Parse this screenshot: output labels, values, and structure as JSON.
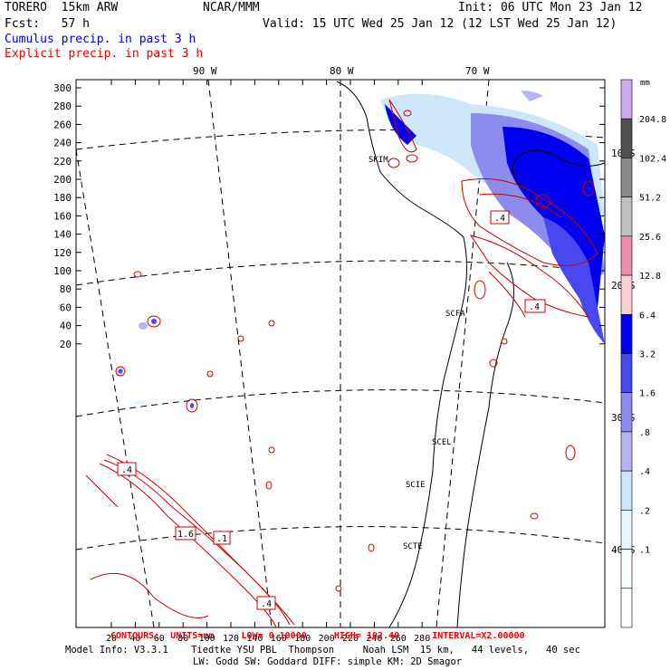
{
  "header": {
    "model": "TORERO  15km ARW",
    "org": "NCAR/MMM",
    "init": "Init: 06 UTC Mon 23 Jan 12",
    "fcst": "Fcst:   57 h",
    "valid": "Valid: 15 UTC Wed 25 Jan 12 (12 LST Wed 25 Jan 12)",
    "cumulus": "Cumulus precip. in past 3 h",
    "explicit": "Explicit precip. in past 3 h"
  },
  "colors": {
    "cumulus_text": "#0000cc",
    "explicit_text": "#ee0000",
    "contour": "#cc0000",
    "coast": "#000000"
  },
  "map": {
    "lon_labels": [
      "90 W",
      "80 W",
      "70 W"
    ],
    "lat_labels": [
      "10 S",
      "20 S",
      "30 S",
      "40 S"
    ],
    "y_ticks": [
      "300",
      "280",
      "260",
      "240",
      "220",
      "200",
      "180",
      "160",
      "140",
      "120",
      "100",
      "80",
      "60",
      "40",
      "20"
    ],
    "x_ticks": [
      "20",
      "40",
      "60",
      "80",
      "100",
      "120",
      "140",
      "160",
      "180",
      "200",
      "220",
      "240",
      "260",
      "280"
    ],
    "stations": [
      "SKIM",
      "SCFA",
      "SCEL",
      "SCIE",
      "SCTE"
    ],
    "contour_labels": [
      ".4",
      ".4",
      "1.6",
      ".1",
      ".4",
      ".4"
    ]
  },
  "colorbar": {
    "unit": "mm",
    "levels": [
      "204.8",
      "102.4",
      "51.2",
      "25.6",
      "12.8",
      "6.4",
      "3.2",
      "1.6",
      ".8",
      ".4",
      ".2",
      ".1"
    ],
    "colors": [
      "#cfa8f4",
      "#505050",
      "#888888",
      "#c0c0c0",
      "#f08cb0",
      "#fad0d4",
      "#0000f0",
      "#4848f0",
      "#8c8cee",
      "#b4b4f4",
      "#cce6fa",
      "#e6f6fc",
      "#f6fefe",
      "#ffffff"
    ]
  },
  "footer": {
    "contours": "CONTOURS:  UNITS=mm     LOW= 0.10000     HIGH= 102.40      INTERVAL=X2.00000",
    "model_info": "Model Info: V3.3.1    Tiedtke YSU PBL  Thompson     Noah LSM  15 km,   44 levels,   40 sec",
    "physics": "LW: Godd SW: Goddard DIFF: simple KM: 2D Smagor"
  }
}
